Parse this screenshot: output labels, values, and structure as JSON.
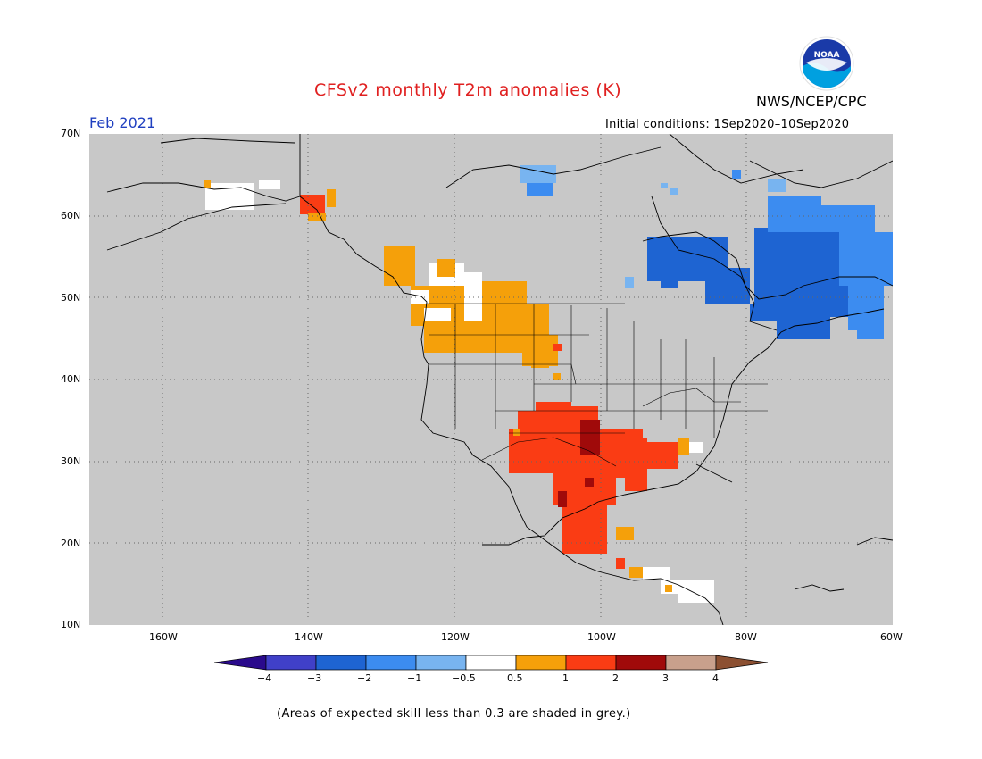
{
  "title": "CFSv2 monthly T2m anomalies (K)",
  "agency": "NWS/NCEP/CPC",
  "logo_text": "NOAA",
  "month_label": "Feb 2021",
  "initial_conditions": "Initial conditions: 1Sep2020–10Sep2020",
  "latitude_labels": [
    "70N",
    "60N",
    "50N",
    "40N",
    "30N",
    "20N",
    "10N"
  ],
  "longitude_labels": [
    "160W",
    "140W",
    "120W",
    "100W",
    "80W",
    "60W"
  ],
  "colorbar": {
    "colors": [
      "#2a0a8c",
      "#4040c8",
      "#1e64d2",
      "#3c8cf0",
      "#78b4f0",
      "#ffffff",
      "#f5a00a",
      "#fa3c14",
      "#a00a0a",
      "#c8a08c",
      "#8c5032"
    ],
    "labels": [
      "−4",
      "−3",
      "−2",
      "−1",
      "−0.5",
      "0.5",
      "1",
      "2",
      "3",
      "4"
    ]
  },
  "footer": "(Areas of expected skill less than 0.3 are shaded in grey.)",
  "colors": {
    "title": "#e02020",
    "month": "#2040c0",
    "ocean_land_grey": "#c8c8c8",
    "coast": "#000000"
  }
}
